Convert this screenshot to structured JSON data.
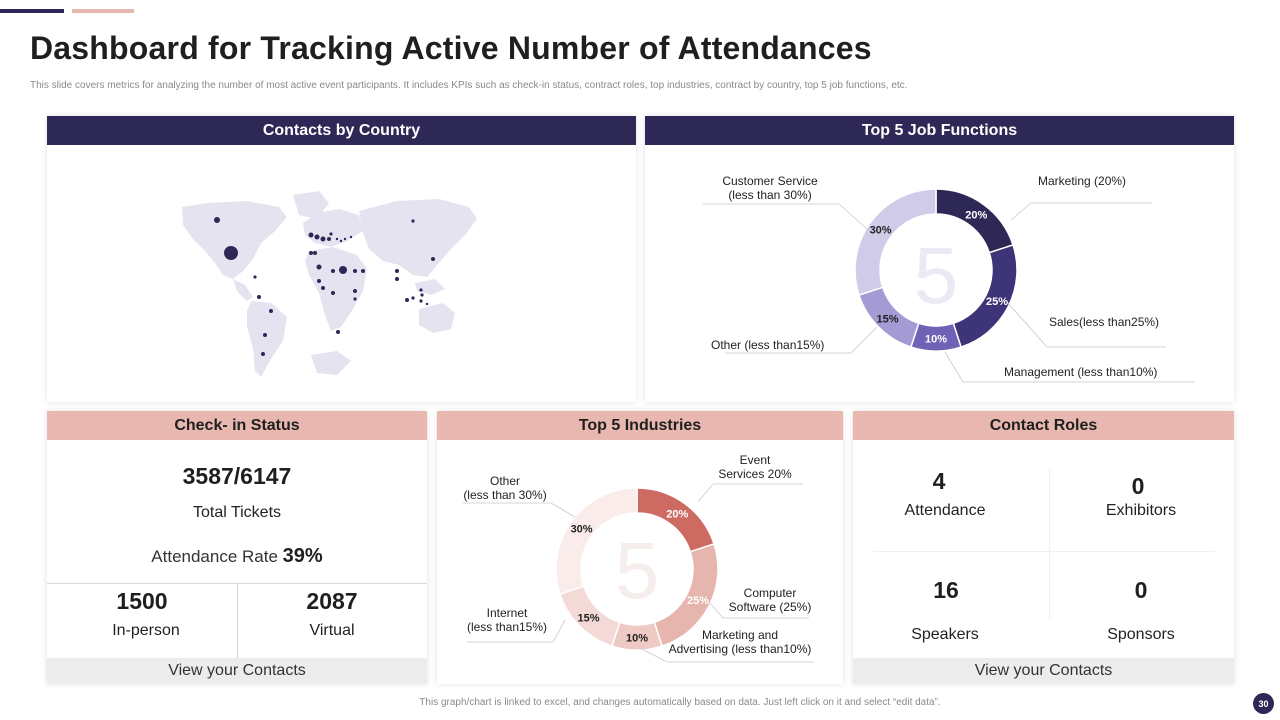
{
  "page": {
    "title": "Dashboard for Tracking Active Number of Attendances",
    "subtitle": "This slide covers metrics for analyzing the number of most active event participants. It includes KPIs such as check-in status, contract roles, top industries, contract by country, top 5 job functions, etc.",
    "footnote": "This graph/chart is linked to excel, and changes automatically based on data. Just left click on it and select “edit data”.",
    "page_number": "30"
  },
  "colors": {
    "dark": "#2e2857",
    "pink": "#e8b8b0",
    "map_land": "#e6e3f1",
    "jobs_palette": [
      "#2e2857",
      "#3d3577",
      "#6d62b5",
      "#a59bd4",
      "#cfcbe8"
    ],
    "industries_palette": [
      "#cd6b62",
      "#e6b5ae",
      "#efc9c4",
      "#f4dad6",
      "#f9ecea"
    ]
  },
  "country": {
    "header": "Contacts by Country"
  },
  "jobs": {
    "header": "Top 5 Job Functions",
    "center_value": "5",
    "labels": {
      "marketing": "Marketing (20%)",
      "sales": "Sales(less than25%)",
      "management": "Management (less than10%)",
      "other": "Other (less than15%)",
      "customer_1": "Customer Service",
      "customer_2": "(less than 30%)"
    }
  },
  "checkin": {
    "header": "Check- in Status",
    "tickets": "3587/6147",
    "tickets_label": "Total Tickets",
    "rate_label": "Attendance Rate",
    "rate_value": "39%",
    "inperson_value": "1500",
    "inperson_label": "In-person",
    "virtual_value": "2087",
    "virtual_label": "Virtual",
    "footer": "View your Contacts"
  },
  "industries": {
    "header": "Top 5 Industries",
    "center_value": "5",
    "labels": {
      "event_1": "Event",
      "event_2": "Services 20%",
      "computer_1": "Computer",
      "computer_2": "Software (25%)",
      "marketing_1": "Marketing and",
      "marketing_2": "Advertising (less than10%)",
      "internet_1": "Internet",
      "internet_2": "(less than15%)",
      "other_1": "Other",
      "other_2": "(less than 30%)"
    }
  },
  "roles": {
    "header": "Contact Roles",
    "attendance_value": "4",
    "attendance_label": "Attendance",
    "exhibitors_value": "0",
    "exhibitors_label": "Exhibitors",
    "speakers_value": "16",
    "speakers_label": "Speakers",
    "sponsors_value": "0",
    "sponsors_label": "Sponsors",
    "footer": "View your Contacts"
  },
  "chart_data": [
    {
      "type": "pie",
      "title": "Top 5 Job Functions",
      "categories": [
        "Marketing",
        "Sales",
        "Management",
        "Other",
        "Customer Service"
      ],
      "values": [
        20,
        25,
        10,
        15,
        30
      ],
      "value_labels": [
        "20%",
        "25%",
        "10%",
        "15%",
        "30%"
      ]
    },
    {
      "type": "pie",
      "title": "Top 5 Industries",
      "categories": [
        "Event Services",
        "Computer Software",
        "Marketing and Advertising",
        "Internet",
        "Other"
      ],
      "values": [
        20,
        25,
        10,
        15,
        30
      ],
      "value_labels": [
        "20%",
        "25%",
        "10%",
        "15%",
        "30%"
      ]
    }
  ]
}
